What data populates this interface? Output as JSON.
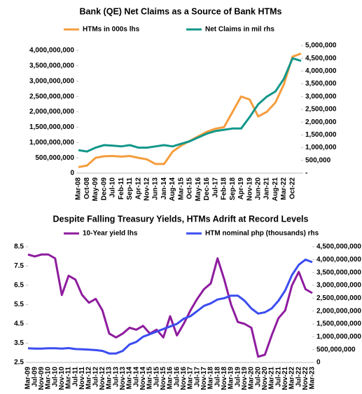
{
  "chart_data": [
    {
      "type": "line",
      "title": "Bank (QE) Net Claims as a Source of Bank HTMs",
      "categories": [
        "Mar-08",
        "Oct-08",
        "May-09",
        "Dec-09",
        "Jul-10",
        "Feb-11",
        "Sep-11",
        "Apr-12",
        "Nov-12",
        "Jun-13",
        "Jan-14",
        "Aug-14",
        "Mar-15",
        "Oct-15",
        "May-16",
        "Dec-16",
        "Jul-17",
        "Feb-18",
        "Sep-18",
        "Apr-19",
        "Nov-19",
        "Jun-20",
        "Jan-21",
        "Aug-21",
        "Mar-22",
        "Oct-22",
        null
      ],
      "series": [
        {
          "name": "HTMs in 000s lhs",
          "color": "#f59d3d",
          "values": [
            200000000,
            250000000,
            500000000,
            550000000,
            560000000,
            540000000,
            560000000,
            500000000,
            450000000,
            300000000,
            300000000,
            700000000,
            900000000,
            1050000000,
            1200000000,
            1350000000,
            1450000000,
            1500000000,
            2000000000,
            2500000000,
            2400000000,
            1850000000,
            2000000000,
            2300000000,
            2900000000,
            3800000000,
            3900000000
          ]
        },
        {
          "name": "Net Claims in mil rhs",
          "color": "#12978a",
          "axis": "y2",
          "values": [
            900000,
            850000,
            1000000,
            1100000,
            1080000,
            1050000,
            1100000,
            1000000,
            1000000,
            1050000,
            1100000,
            1050000,
            1150000,
            1250000,
            1400000,
            1550000,
            1650000,
            1700000,
            1750000,
            1750000,
            2200000,
            2700000,
            3000000,
            3200000,
            3700000,
            4500000,
            4400000
          ]
        }
      ],
      "ylim": [
        0,
        4000000000
      ],
      "yticks": [
        0,
        {
          "value": 500000000,
          "label": "500,000,000"
        },
        {
          "value": 1000000000,
          "label": "1,000,000,000"
        },
        {
          "value": 1500000000,
          "label": "1,500,000,000"
        },
        {
          "value": 2000000000,
          "label": "2,000,000,000"
        },
        {
          "value": 2500000000,
          "label": "2,500,000,000"
        },
        {
          "value": 3000000000,
          "label": "3,000,000,000"
        },
        {
          "value": 3500000000,
          "label": "3,500,000,000"
        },
        {
          "value": 4000000000,
          "label": "4,000,000,000"
        }
      ],
      "y2lim": [
        0,
        5000000
      ],
      "y2ticks": [
        {
          "value": 0,
          "label": "-"
        },
        {
          "value": 500000,
          "label": "500,000"
        },
        {
          "value": 1000000,
          "label": "1,000,000"
        },
        {
          "value": 1500000,
          "label": "1,500,000"
        },
        {
          "value": 2000000,
          "label": "2,000,000"
        },
        {
          "value": 2500000,
          "label": "2,500,000"
        },
        {
          "value": 3000000,
          "label": "3,000,000"
        },
        {
          "value": 3500000,
          "label": "3,500,000"
        },
        {
          "value": 4000000,
          "label": "4,000,000"
        },
        {
          "value": 4500000,
          "label": "4,500,000"
        },
        {
          "value": 5000000,
          "label": "5,000,000"
        }
      ],
      "legend": "top"
    },
    {
      "type": "line",
      "title": "Despite Falling Treasury Yields, HTMs Adrift at Record Levels",
      "categories": [
        "Mar-09",
        "Jul-09",
        "Nov-09",
        "Mar-10",
        "Jul-10",
        "Nov-10",
        "Mar-11",
        "Jul-11",
        "Nov-11",
        "Mar-12",
        "Jul-12",
        "Nov-12",
        "Mar-13",
        "Jul-13",
        "Nov-13",
        "Mar-14",
        "Jul-14",
        "Nov-14",
        "Mar-15",
        "Jul-15",
        "Nov-15",
        "Mar-16",
        "Jul-16",
        "Nov-16",
        "Mar-17",
        "Jul-17",
        "Nov-17",
        "Mar-18",
        "Jul-18",
        "Nov-18",
        "Mar-19",
        "Jul-19",
        "Nov-19",
        "Mar-20",
        "Jul-20",
        "Nov-20",
        "Mar-21",
        "Jul-21",
        "Nov-21",
        "Mar-22",
        "Jul-22",
        "Nov-22",
        "Mar-23"
      ],
      "series": [
        {
          "name": "10-Year yield lhs",
          "color": "#8e1c9e",
          "values": [
            8.1,
            8.0,
            8.1,
            8.1,
            7.9,
            6.0,
            7.0,
            6.8,
            6.0,
            5.6,
            5.8,
            5.2,
            4.0,
            3.8,
            4.0,
            4.3,
            4.2,
            4.4,
            4.0,
            4.2,
            3.8,
            4.9,
            3.9,
            4.5,
            5.2,
            5.8,
            6.3,
            6.6,
            7.9,
            6.8,
            5.5,
            4.6,
            4.5,
            4.3,
            2.8,
            2.9,
            3.9,
            4.8,
            5.2,
            6.5,
            7.2,
            6.3,
            6.1
          ]
        },
        {
          "name": "HTM nominal php (thousands) rhs",
          "color": "#3b4df0",
          "axis": "y2",
          "values": [
            550000000,
            540000000,
            540000000,
            550000000,
            550000000,
            540000000,
            560000000,
            520000000,
            510000000,
            500000000,
            480000000,
            450000000,
            350000000,
            350000000,
            450000000,
            700000000,
            800000000,
            1000000000,
            1100000000,
            1200000000,
            1300000000,
            1400000000,
            1500000000,
            1700000000,
            1800000000,
            2000000000,
            2200000000,
            2300000000,
            2450000000,
            2500000000,
            2600000000,
            2600000000,
            2400000000,
            2100000000,
            1900000000,
            1950000000,
            2100000000,
            2400000000,
            2800000000,
            3400000000,
            3800000000,
            4000000000,
            3900000000
          ]
        }
      ],
      "ylim": [
        2.5,
        8.5
      ],
      "yticks": [
        2.5,
        3.5,
        4.5,
        5.5,
        6.5,
        7.5,
        8.5
      ],
      "y2lim": [
        0,
        4500000000
      ],
      "y2ticks": [
        0,
        {
          "value": 500000000,
          "label": "500,000,000"
        },
        {
          "value": 1000000000,
          "label": "1,000,000,000"
        },
        {
          "value": 1500000000,
          "label": "1,500,000,000"
        },
        {
          "value": 2000000000,
          "label": "2,000,000,000"
        },
        {
          "value": 2500000000,
          "label": "2,500,000,000"
        },
        {
          "value": 3000000000,
          "label": "3,000,000,000"
        },
        {
          "value": 3500000000,
          "label": "3,500,000,000"
        },
        {
          "value": 4000000000,
          "label": "4,000,000,000"
        },
        {
          "value": 4500000000,
          "label": "4,500,000,000"
        }
      ],
      "legend": "top"
    }
  ]
}
